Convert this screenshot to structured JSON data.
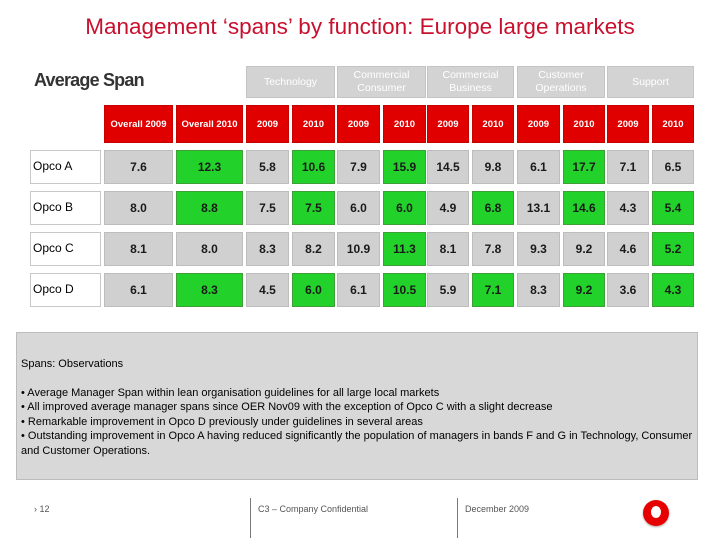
{
  "title": "Management ‘spans’ by function: Europe large markets",
  "subtitle": "Average Span",
  "groups": [
    "Technology",
    "Commercial Consumer",
    "Commercial Business",
    "Customer Operations",
    "Support"
  ],
  "columns": [
    "Overall 2009",
    "Overall 2010",
    "2009",
    "2010",
    "2009",
    "2010",
    "2009",
    "2010",
    "2009",
    "2010",
    "2009",
    "2010"
  ],
  "rows": [
    {
      "label": "Opco A",
      "values": [
        "7.6",
        "12.3",
        "5.8",
        "10.6",
        "7.9",
        "15.9",
        "14.5",
        "9.8",
        "6.1",
        "17.7",
        "7.1",
        "6.5"
      ]
    },
    {
      "label": "Opco B",
      "values": [
        "8.0",
        "8.8",
        "7.5",
        "7.5",
        "6.0",
        "6.0",
        "4.9",
        "6.8",
        "13.1",
        "14.6",
        "4.3",
        "5.4"
      ]
    },
    {
      "label": "Opco C",
      "values": [
        "8.1",
        "8.0",
        "8.3",
        "8.2",
        "10.9",
        "11.3",
        "8.1",
        "7.8",
        "9.3",
        "9.2",
        "4.6",
        "5.2"
      ]
    },
    {
      "label": "Opco D",
      "values": [
        "6.1",
        "8.3",
        "4.5",
        "6.0",
        "6.1",
        "10.5",
        "5.9",
        "7.1",
        "8.3",
        "9.2",
        "3.6",
        "4.3"
      ]
    }
  ],
  "cell_colors": [
    [
      "grey",
      "green",
      "grey",
      "green",
      "grey",
      "green",
      "grey",
      "grey",
      "grey",
      "green",
      "grey",
      "grey"
    ],
    [
      "grey",
      "green",
      "grey",
      "green",
      "grey",
      "green",
      "grey",
      "green",
      "grey",
      "green",
      "grey",
      "green"
    ],
    [
      "grey",
      "grey",
      "grey",
      "grey",
      "grey",
      "green",
      "grey",
      "grey",
      "grey",
      "grey",
      "grey",
      "green"
    ],
    [
      "grey",
      "green",
      "grey",
      "green",
      "grey",
      "green",
      "grey",
      "green",
      "grey",
      "green",
      "grey",
      "green"
    ]
  ],
  "colors": {
    "grey": "#d0d0d0",
    "green": "#22d22a",
    "red": "#e00000",
    "title": "#c8102e"
  },
  "observations": {
    "title": "Spans: Observations",
    "bullets": [
      "• Average Manager Span within lean organisation guidelines for all large local markets",
      "• All improved average manager spans since OER Nov09 with the exception of Opco C with a slight decrease",
      "• Remarkable improvement in Opco D previously under guidelines in several areas",
      "• Outstanding improvement in Opco A having reduced significantly the population of managers in bands F and G in Technology, Consumer and Customer Operations."
    ]
  },
  "footer": {
    "page": "› 12",
    "confidential": "C3 – Company Confidential",
    "date": "December 2009"
  },
  "logo_icon": "vodafone-logo-icon"
}
